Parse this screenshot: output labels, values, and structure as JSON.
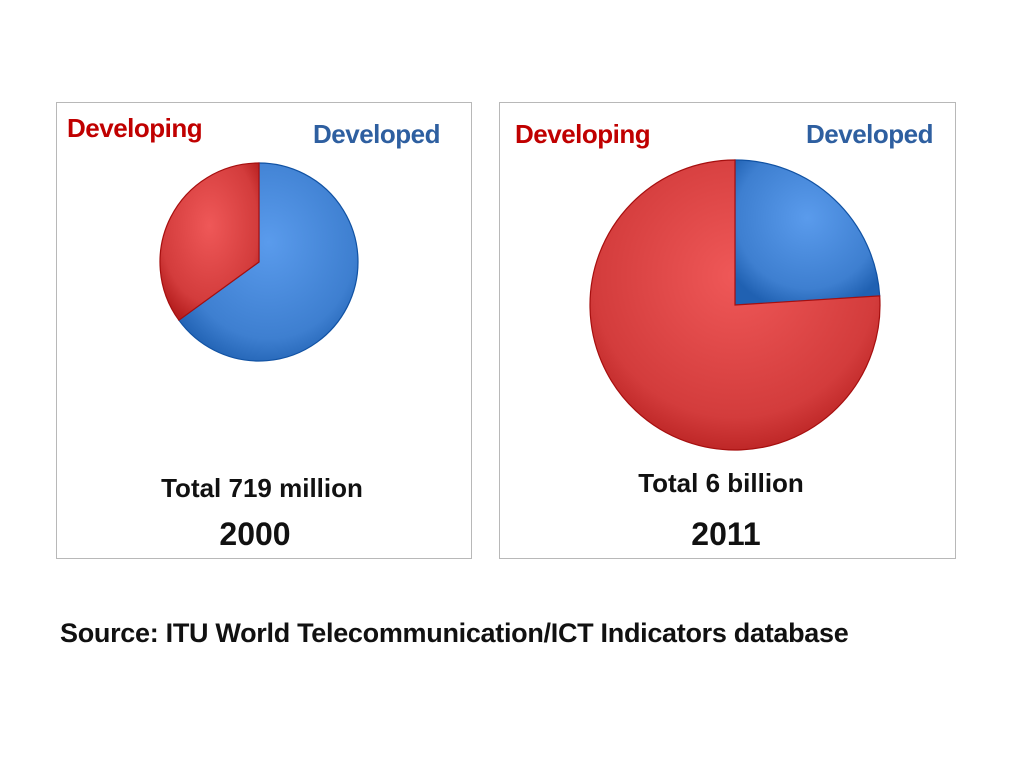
{
  "chart_data": [
    {
      "type": "pie",
      "title": "2000",
      "total_label": "Total  719 million",
      "categories": [
        "Developing",
        "Developed"
      ],
      "values": [
        35,
        65
      ],
      "colors": {
        "Developing": "#d33c3c",
        "Developed": "#3e7fd0"
      },
      "legend_colors": {
        "Developing": "#c00000",
        "Developed": "#2e5fa0"
      }
    },
    {
      "type": "pie",
      "title": "2011",
      "total_label": "Total  6 billion",
      "categories": [
        "Developing",
        "Developed"
      ],
      "values": [
        76,
        24
      ],
      "colors": {
        "Developing": "#d33c3c",
        "Developed": "#3e7fd0"
      },
      "legend_colors": {
        "Developing": "#c00000",
        "Developed": "#2e5fa0"
      }
    }
  ],
  "source": "Source: ITU World Telecommunication/ICT Indicators database"
}
